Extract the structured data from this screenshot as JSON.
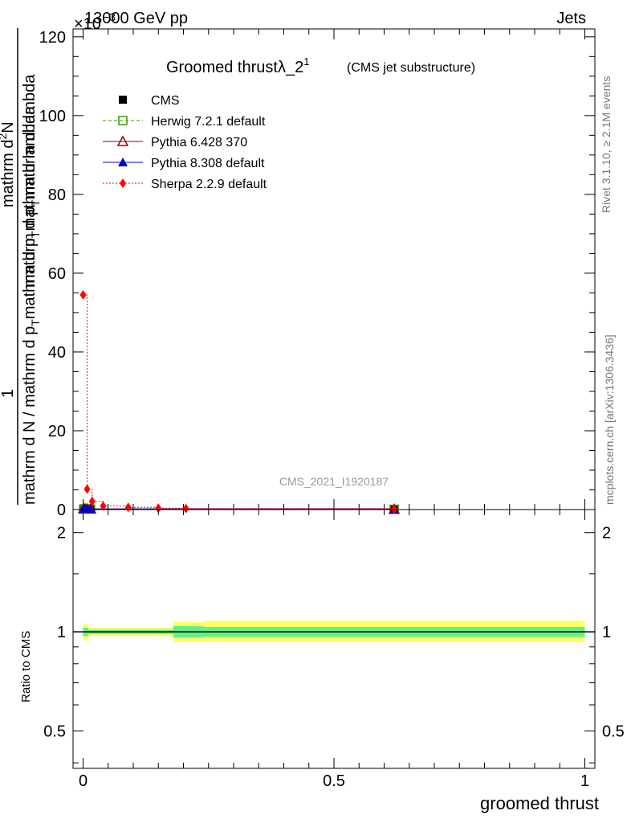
{
  "header": {
    "energy": "13000 GeV pp",
    "category": "Jets",
    "exponent": "×10",
    "exponent_power": "−3"
  },
  "side": {
    "rivet": "Rivet 3.1.10, ≥ 2.1M events",
    "mcplots": "mcplots.cern.ch [arXiv:1306.3436]"
  },
  "watermark": "CMS_2021_I1920187",
  "chart_data": [
    {
      "type": "line",
      "title": "Groomed thrust",
      "title_lambda": "λ_2",
      "title_sup": "1",
      "subtitle": "(CMS jet substructure)",
      "ylabel_main": "mathrm d N / mathrm d p",
      "ylabel_sub": "T",
      "ylabel_tail": "mathrm d lambda",
      "ylabel_num": "mathrm d",
      "ylabel_num_sup": "2",
      "ylabel_num_tail": "N",
      "ylabel_den": "mathrm d p",
      "ylabel_den_sub": "T",
      "ylabel_den_tail": "mathrm d lambda",
      "ylabel_frac_num": "1",
      "ylabel_frac_den": "mathrm d N / mathrm d p",
      "ylabel_frac_den_sub": "T",
      "ylabel_frac_den_tail": "mathrm d p",
      "ylabel_frac_den_sub2": "T",
      "ylabel_frac_den_tail2": "mathrm d lambda",
      "ylabel_top": "mathrm d",
      "ylabel_top_sup": "2",
      "ylabel_top_tail": "N",
      "xlim": [
        -0.02,
        1.02
      ],
      "ylim": [
        0,
        122
      ],
      "yscale_factor": "1e-3",
      "yticks": [
        0,
        20,
        40,
        60,
        80,
        100,
        120
      ],
      "ytick_labels": [
        "0",
        "20",
        "40",
        "60",
        "80",
        "100",
        "120"
      ],
      "legend_position": "top-left",
      "series": [
        {
          "name": "CMS",
          "color": "#000000",
          "marker": "filled-square",
          "line": "none",
          "x": [
            0.001,
            0.004,
            0.0085,
            0.015,
            0.62
          ],
          "y": [
            0.15,
            0.2,
            0.18,
            0.15,
            0.08
          ]
        },
        {
          "name": "Herwig 7.2.1 default",
          "color": "#339900",
          "marker": "open-square",
          "line": "dashed",
          "x": [
            0.001,
            0.004,
            0.0085,
            0.015,
            0.62
          ],
          "y": [
            0.15,
            0.2,
            0.18,
            0.15,
            0.08
          ]
        },
        {
          "name": "Pythia 6.428 370",
          "color": "#990000",
          "marker": "open-triangle",
          "line": "solid",
          "x": [
            0.001,
            0.004,
            0.0085,
            0.015,
            0.62
          ],
          "y": [
            0.15,
            0.2,
            0.18,
            0.15,
            0.08
          ]
        },
        {
          "name": "Pythia 8.308 default",
          "color": "#0000cc",
          "marker": "filled-triangle",
          "line": "solid",
          "x": [
            0.001,
            0.004,
            0.0085,
            0.015,
            0.62
          ],
          "y": [
            0.15,
            0.2,
            0.18,
            0.15,
            0.08
          ]
        },
        {
          "name": "Sherpa 2.2.9 default",
          "color": "#ff0000",
          "marker": "filled-diamond",
          "line": "dotted",
          "x": [
            0.0,
            0.008,
            0.018,
            0.04,
            0.09,
            0.15,
            0.205,
            0.62
          ],
          "y": [
            54.5,
            5.2,
            2.1,
            0.9,
            0.55,
            0.35,
            0.25,
            0.1
          ]
        }
      ]
    },
    {
      "type": "line",
      "ylabel": "Ratio to CMS",
      "xlabel": "groomed thrust",
      "xlim": [
        -0.02,
        1.02
      ],
      "ylim_log": [
        0.385,
        2.35
      ],
      "yscale": "log",
      "yticks": [
        0.5,
        1,
        2
      ],
      "ytick_labels": [
        "0.5",
        "1",
        "2"
      ],
      "xticks": [
        0,
        0.5,
        1
      ],
      "xtick_labels": [
        "0",
        "0.5",
        "1"
      ],
      "bands": [
        {
          "name": "outer-uncertainty",
          "color": "#ffff66",
          "edges": [
            0.0,
            0.01,
            0.06,
            0.12,
            0.18,
            0.24,
            1.0
          ],
          "lo": [
            0.94,
            0.97,
            0.97,
            0.97,
            0.93,
            0.93
          ],
          "hi": [
            1.06,
            1.03,
            1.03,
            1.03,
            1.07,
            1.08
          ]
        },
        {
          "name": "inner-uncertainty",
          "color": "#66ee88",
          "edges": [
            0.0,
            0.01,
            0.06,
            0.12,
            0.18,
            0.24,
            1.0
          ],
          "lo": [
            0.97,
            0.985,
            0.985,
            0.985,
            0.96,
            0.965
          ],
          "hi": [
            1.03,
            1.015,
            1.015,
            1.015,
            1.04,
            1.035
          ]
        }
      ],
      "reference": 1
    }
  ]
}
